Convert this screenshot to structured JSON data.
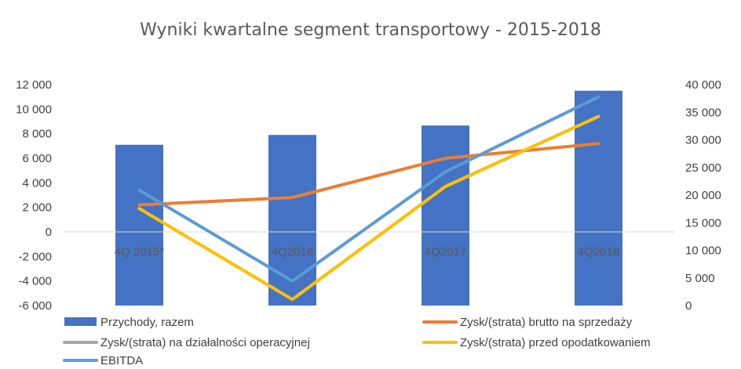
{
  "chart_data": {
    "type": "bar",
    "title": "Wyniki kwartalne segment transportowy - 2015-2018",
    "categories": [
      "4Q 2015*",
      "4Q2016",
      "4Q2017",
      "4Q2018"
    ],
    "y_left": {
      "ylim": [
        -6000,
        12000
      ],
      "ticks": [
        -6000,
        -4000,
        -2000,
        0,
        2000,
        4000,
        6000,
        8000,
        10000,
        12000
      ],
      "tick_labels": [
        "-6 000",
        "-4 000",
        "-2 000",
        "0",
        "2 000",
        "4 000",
        "6 000",
        "8 000",
        "10 000",
        "12 000"
      ]
    },
    "y_right": {
      "ylim": [
        0,
        40000
      ],
      "ticks": [
        0,
        5000,
        10000,
        15000,
        20000,
        25000,
        30000,
        35000,
        40000
      ],
      "tick_labels": [
        "0",
        "5 000",
        "10 000",
        "15 000",
        "20 000",
        "25 000",
        "30 000",
        "35 000",
        "40 000"
      ]
    },
    "series": [
      {
        "name": "Przychody, razem",
        "type": "bar",
        "axis": "right",
        "color": "#4472C4",
        "values": [
          29100,
          30900,
          32600,
          38900
        ]
      },
      {
        "name": "Zysk/(strata) brutto na sprzedaży",
        "type": "line",
        "axis": "left",
        "color": "#ED7D31",
        "values": [
          2200,
          2800,
          6000,
          7200
        ]
      },
      {
        "name": "Zysk/(strata) na działalności operacyjnej",
        "type": "line",
        "axis": "left",
        "color": "#A5A5A5",
        "values": [
          1900,
          -5500,
          3700,
          9400
        ]
      },
      {
        "name": "Zysk/(strata) przed opodatkowaniem",
        "type": "line",
        "axis": "left",
        "color": "#FFC000",
        "values": [
          1900,
          -5500,
          3700,
          9400
        ]
      },
      {
        "name": "EBITDA",
        "type": "line",
        "axis": "left",
        "color": "#5B9BD5",
        "values": [
          3400,
          -4000,
          4900,
          11000
        ]
      }
    ],
    "legend_position": "bottom",
    "grid": false
  }
}
